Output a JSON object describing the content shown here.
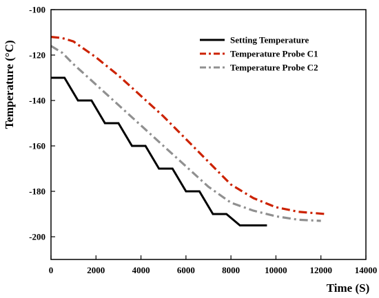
{
  "chart_data": {
    "type": "line",
    "xlabel": "Time (S)",
    "ylabel": "Temperature (°C)",
    "xlim": [
      0,
      14000
    ],
    "ylim": [
      -210,
      -100
    ],
    "xticks": [
      0,
      2000,
      4000,
      6000,
      8000,
      10000,
      12000,
      14000
    ],
    "yticks": [
      -200,
      -180,
      -160,
      -140,
      -120,
      -100
    ],
    "xtick_labels": [
      "0",
      "2000",
      "4000",
      "6000",
      "8000",
      "10000",
      "12000",
      "14000"
    ],
    "ytick_labels": [
      "-200",
      "-180",
      "-160",
      "-140",
      "-120",
      "-100"
    ],
    "grid": false,
    "legend_position": "top-right",
    "series": [
      {
        "name": "Setting Temperature",
        "color": "#000000",
        "style": "solid",
        "x": [
          0,
          600,
          1200,
          1800,
          2400,
          3000,
          3600,
          4200,
          4800,
          5400,
          6000,
          6600,
          7200,
          7800,
          8400,
          9600
        ],
        "y": [
          -130,
          -130,
          -140,
          -140,
          -150,
          -150,
          -160,
          -160,
          -170,
          -170,
          -180,
          -180,
          -190,
          -190,
          -195,
          -195
        ]
      },
      {
        "name": "Temperature Probe C1",
        "color": "#cc2200",
        "style": "dashdot",
        "x": [
          0,
          500,
          1000,
          2000,
          3000,
          4000,
          5000,
          6000,
          7000,
          8000,
          9000,
          10000,
          11000,
          12200
        ],
        "y": [
          -112,
          -112.5,
          -114,
          -121,
          -129,
          -138,
          -147,
          -157,
          -167,
          -177,
          -183,
          -187,
          -189,
          -190
        ]
      },
      {
        "name": "Temperature Probe C2",
        "color": "#909090",
        "style": "dashdot",
        "x": [
          0,
          500,
          1000,
          2000,
          3000,
          4000,
          5000,
          6000,
          7000,
          8000,
          9000,
          10000,
          11000,
          12000
        ],
        "y": [
          -116,
          -119,
          -124,
          -133,
          -142,
          -151,
          -160,
          -169,
          -178,
          -185,
          -188.5,
          -191,
          -192.5,
          -193
        ]
      }
    ]
  }
}
